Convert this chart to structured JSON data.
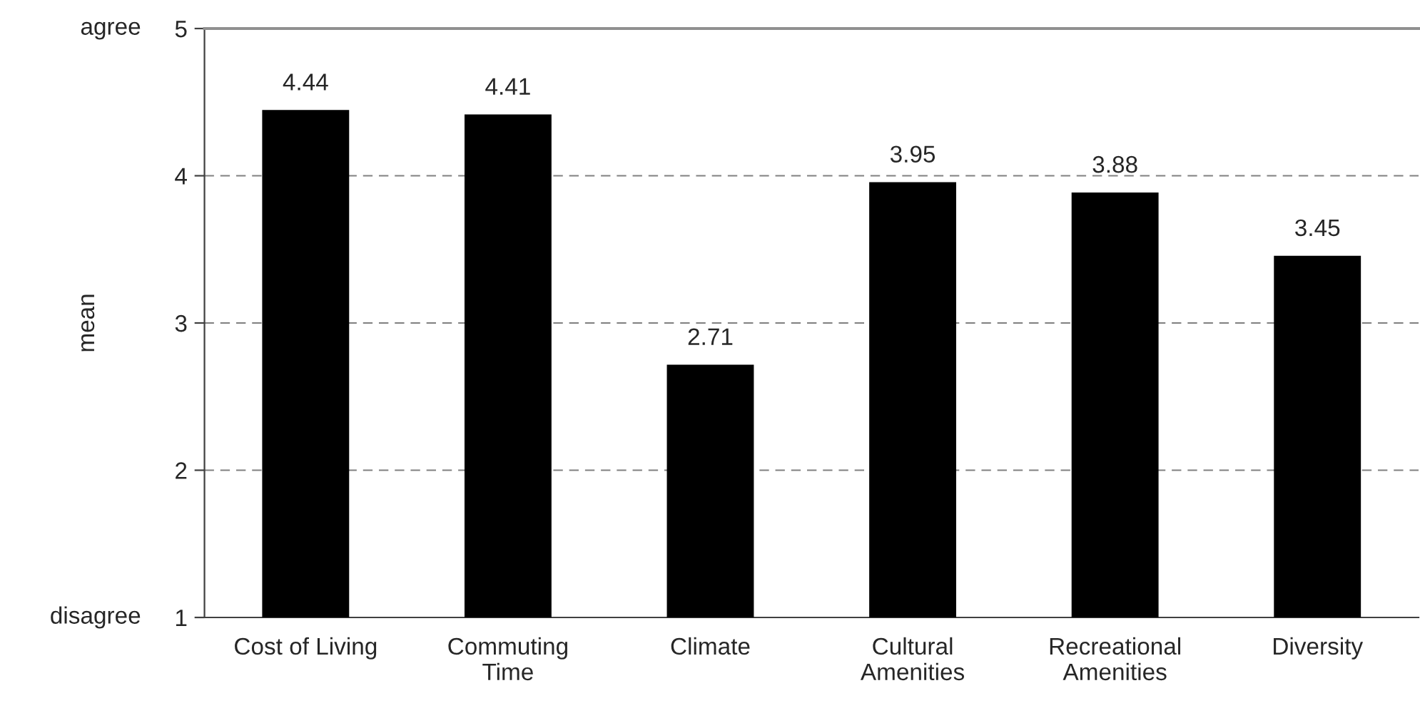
{
  "chart_data": {
    "type": "bar",
    "categories": [
      "Cost of Living",
      "Commuting\nTime",
      "Climate",
      "Cultural\nAmenities",
      "Recreational\nAmenities",
      "Diversity"
    ],
    "values": [
      4.44,
      4.41,
      2.71,
      3.95,
      3.88,
      3.45
    ],
    "color": "#000000",
    "ylabel": "mean",
    "ylim": [
      1,
      5
    ],
    "yticks": [
      1,
      2,
      3,
      4,
      5
    ],
    "annotations": [
      "agree",
      "disagree"
    ],
    "data_labels": true,
    "grid": "y",
    "legend": false
  }
}
